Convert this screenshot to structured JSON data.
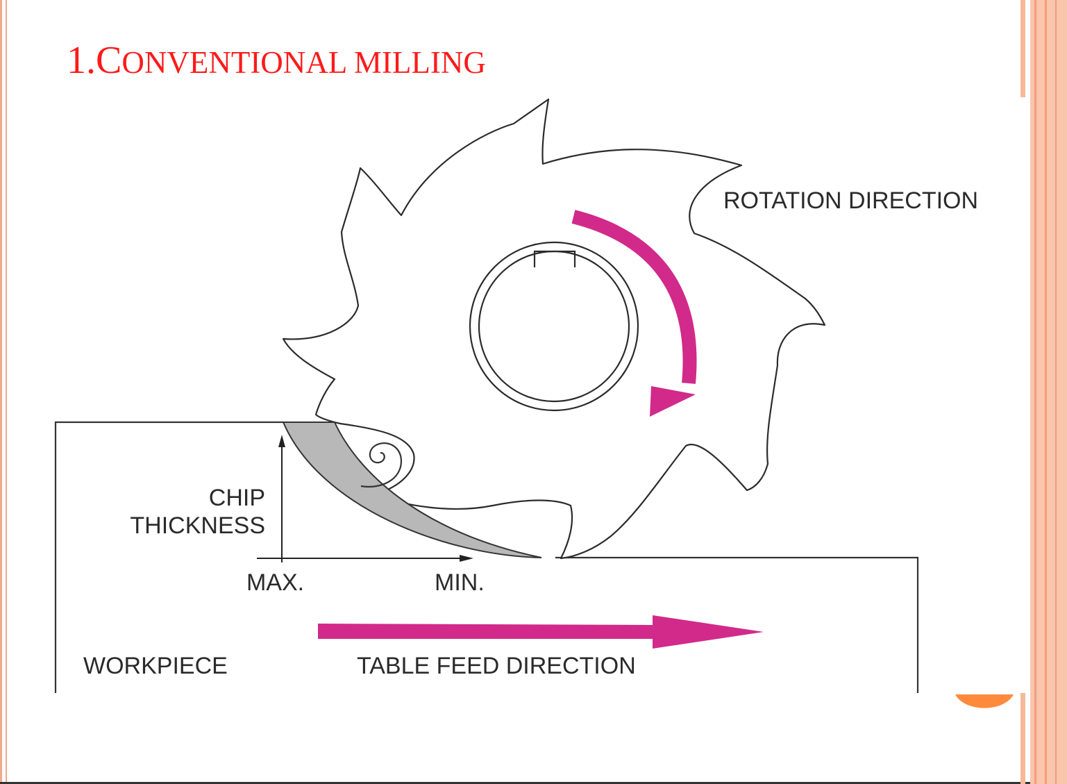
{
  "slide": {
    "title_number": "1.",
    "title_initial": "C",
    "title_rest": "ONVENTIONAL MILLING"
  },
  "labels": {
    "rotation": "ROTATION DIRECTION",
    "chip_line1": "CHIP",
    "chip_line2": "THICKNESS",
    "max": "MAX.",
    "min": "MIN.",
    "workpiece": "WORKPIECE",
    "feed": "TABLE FEED DIRECTION"
  },
  "colors": {
    "title": "#ff1a1a",
    "arrow": "#d12a8a",
    "frame_accent": "#f7b89a",
    "dot_accent": "#ff8a3d",
    "chip_fill": "#b8b8b8"
  }
}
